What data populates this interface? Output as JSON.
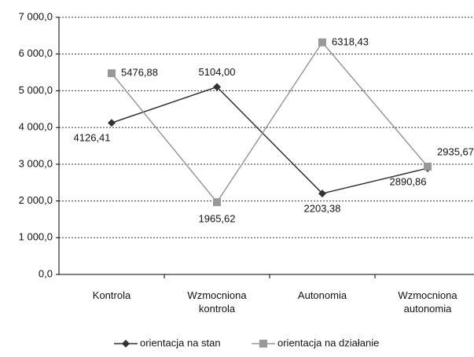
{
  "chart_data": {
    "type": "line",
    "categories": [
      "Kontrola",
      "Wzmocniona kontrola",
      "Autonomia",
      "Wzmocniona autonomia"
    ],
    "series": [
      {
        "name": "orientacja na stan",
        "color": "#333333",
        "marker": "diamond",
        "values": [
          4126.41,
          5104.0,
          2203.38,
          2890.86
        ],
        "value_labels": [
          "4126,41",
          "5104,00",
          "2203,38",
          "2890,86"
        ]
      },
      {
        "name": "orientacja na działanie",
        "color": "#999999",
        "marker": "square",
        "values": [
          5476.88,
          1965.62,
          6318.43,
          2935.67
        ],
        "value_labels": [
          "5476,88",
          "1965,62",
          "6318,43",
          "2935,67"
        ]
      }
    ],
    "ylim": [
      0,
      7000
    ],
    "yticks": [
      {
        "value": 0,
        "label": "0,0"
      },
      {
        "value": 1000,
        "label": "1 000,0"
      },
      {
        "value": 2000,
        "label": "2 000,0"
      },
      {
        "value": 3000,
        "label": "3 000,0"
      },
      {
        "value": 4000,
        "label": "4 000,0"
      },
      {
        "value": 5000,
        "label": "5 000,0"
      },
      {
        "value": 6000,
        "label": "6 000,0"
      },
      {
        "value": 7000,
        "label": "7 000,0"
      }
    ],
    "grid": true,
    "legend": "bottom"
  }
}
